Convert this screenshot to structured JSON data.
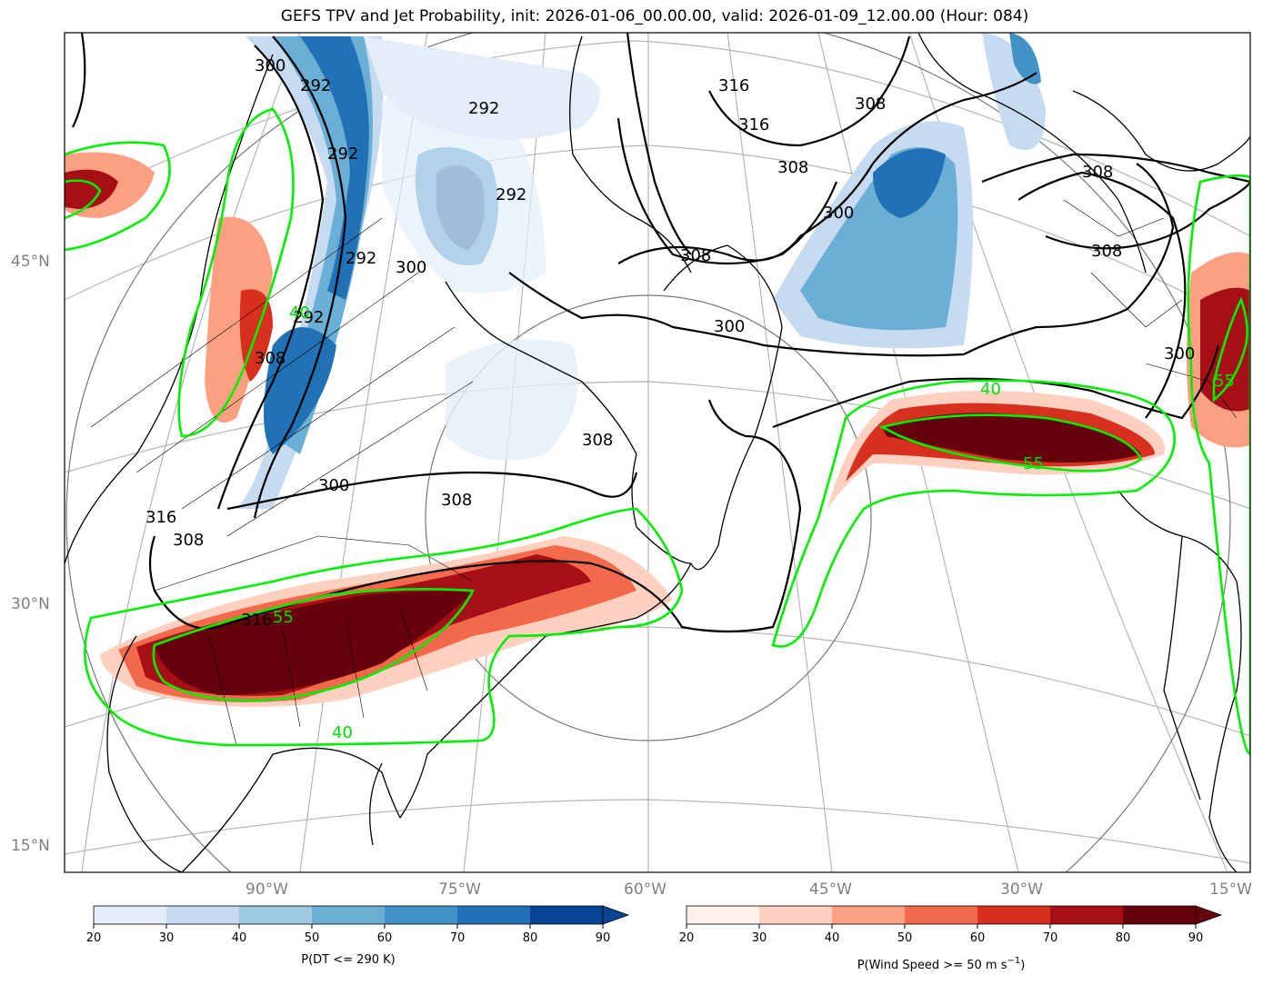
{
  "title": "GEFS TPV and Jet Probability, init: 2026-01-06_00.00.00, valid: 2026-01-09_12.00.00 (Hour: 084)",
  "lat_labels": [
    "45°N",
    "30°N",
    "15°N"
  ],
  "lon_labels": [
    "90°W",
    "75°W",
    "60°W",
    "45°W",
    "30°W",
    "15°W"
  ],
  "contour_labels": [
    "300",
    "292",
    "292",
    "292",
    "308",
    "292",
    "316",
    "316",
    "308",
    "300",
    "308",
    "292",
    "300",
    "292",
    "308",
    "308",
    "300",
    "308",
    "316",
    "308",
    "300",
    "308",
    "300",
    "316",
    "308"
  ],
  "jet_labels": [
    "40",
    "40",
    "55",
    "55",
    "55",
    "40"
  ],
  "colorbar_dt": {
    "title": "P(DT <= 290 K)",
    "ticks": [
      "20",
      "30",
      "40",
      "50",
      "60",
      "70",
      "80",
      "90"
    ],
    "colors": [
      "#e3eef9",
      "#c6dbef",
      "#9ecae1",
      "#6baed6",
      "#4292c6",
      "#2171b5",
      "#084594"
    ]
  },
  "colorbar_wind": {
    "title_prefix": "P(Wind Speed >= 50 m s",
    "title_exp": "−1",
    "title_suffix": ")",
    "ticks": [
      "20",
      "30",
      "40",
      "50",
      "60",
      "70",
      "80",
      "90"
    ],
    "colors": [
      "#fff0eb",
      "#fdd0c0",
      "#fca082",
      "#f26a4b",
      "#d7301f",
      "#a50f15",
      "#67000d"
    ]
  }
}
